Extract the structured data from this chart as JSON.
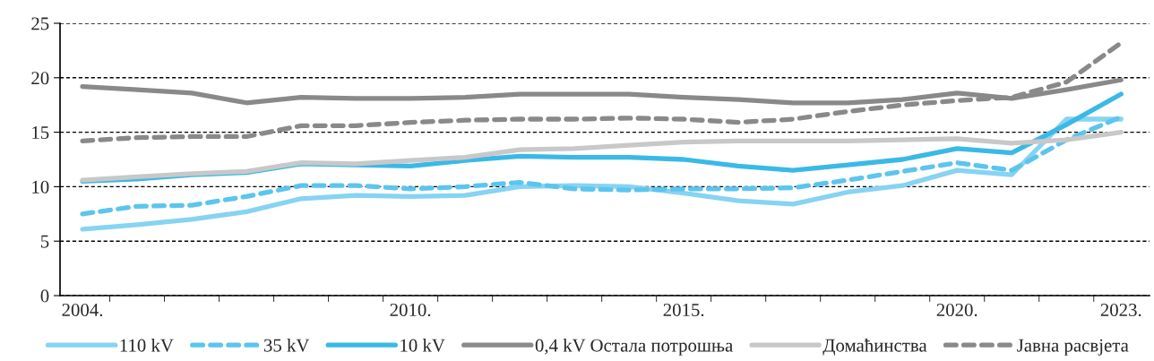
{
  "chart_data": {
    "type": "line",
    "categories": [
      "2004.",
      null,
      null,
      null,
      null,
      null,
      "2010.",
      null,
      null,
      null,
      null,
      "2015.",
      null,
      null,
      null,
      null,
      "2020.",
      null,
      null,
      "2023."
    ],
    "series": [
      {
        "name": "110 kV",
        "color": "#87d3f2",
        "line_style": "solid",
        "values": [
          6.1,
          6.5,
          7.0,
          7.7,
          8.9,
          9.2,
          9.1,
          9.2,
          10.0,
          10.1,
          10.0,
          9.4,
          8.7,
          8.4,
          9.5,
          10.1,
          11.5,
          11.1,
          16.2,
          16.2
        ]
      },
      {
        "name": "35 kV",
        "color": "#5bc5ee",
        "line_style": "dashed",
        "values": [
          7.5,
          8.2,
          8.3,
          9.1,
          10.1,
          10.1,
          9.8,
          10.0,
          10.4,
          9.8,
          9.7,
          9.8,
          9.8,
          9.9,
          10.6,
          11.4,
          12.2,
          11.5,
          14.3,
          16.4
        ]
      },
      {
        "name": "10 kV",
        "color": "#3bb9e6",
        "line_style": "solid",
        "values": [
          10.5,
          10.7,
          11.1,
          11.3,
          12.1,
          12.0,
          11.9,
          12.4,
          12.8,
          12.7,
          12.7,
          12.5,
          11.9,
          11.5,
          12.0,
          12.5,
          13.5,
          13.1,
          15.7,
          18.5
        ]
      },
      {
        "name": "0,4 kV Остала потрошња",
        "color": "#898989",
        "line_style": "solid",
        "values": [
          19.2,
          18.9,
          18.6,
          17.7,
          18.2,
          18.1,
          18.1,
          18.2,
          18.5,
          18.5,
          18.5,
          18.2,
          18.0,
          17.7,
          17.7,
          18.0,
          18.6,
          18.1,
          18.9,
          19.8
        ]
      },
      {
        "name": "Домаћинства",
        "color": "#c8c8c8",
        "line_style": "solid",
        "values": [
          10.6,
          10.9,
          11.2,
          11.4,
          12.2,
          12.1,
          12.4,
          12.7,
          13.4,
          13.5,
          13.8,
          14.1,
          14.2,
          14.2,
          14.2,
          14.3,
          14.4,
          14.0,
          14.3,
          15.0
        ]
      },
      {
        "name": "Јавна расвјета",
        "color": "#898989",
        "line_style": "dashed",
        "values": [
          14.2,
          14.5,
          14.6,
          14.6,
          15.6,
          15.6,
          15.9,
          16.1,
          16.2,
          16.2,
          16.3,
          16.2,
          15.9,
          16.2,
          16.9,
          17.5,
          17.9,
          18.2,
          19.6,
          23.2
        ]
      }
    ],
    "ylim": [
      0,
      25
    ],
    "yticks": [
      0,
      5,
      10,
      15,
      20,
      25
    ],
    "grid": "y",
    "legend": "bottom",
    "marker": "none"
  }
}
